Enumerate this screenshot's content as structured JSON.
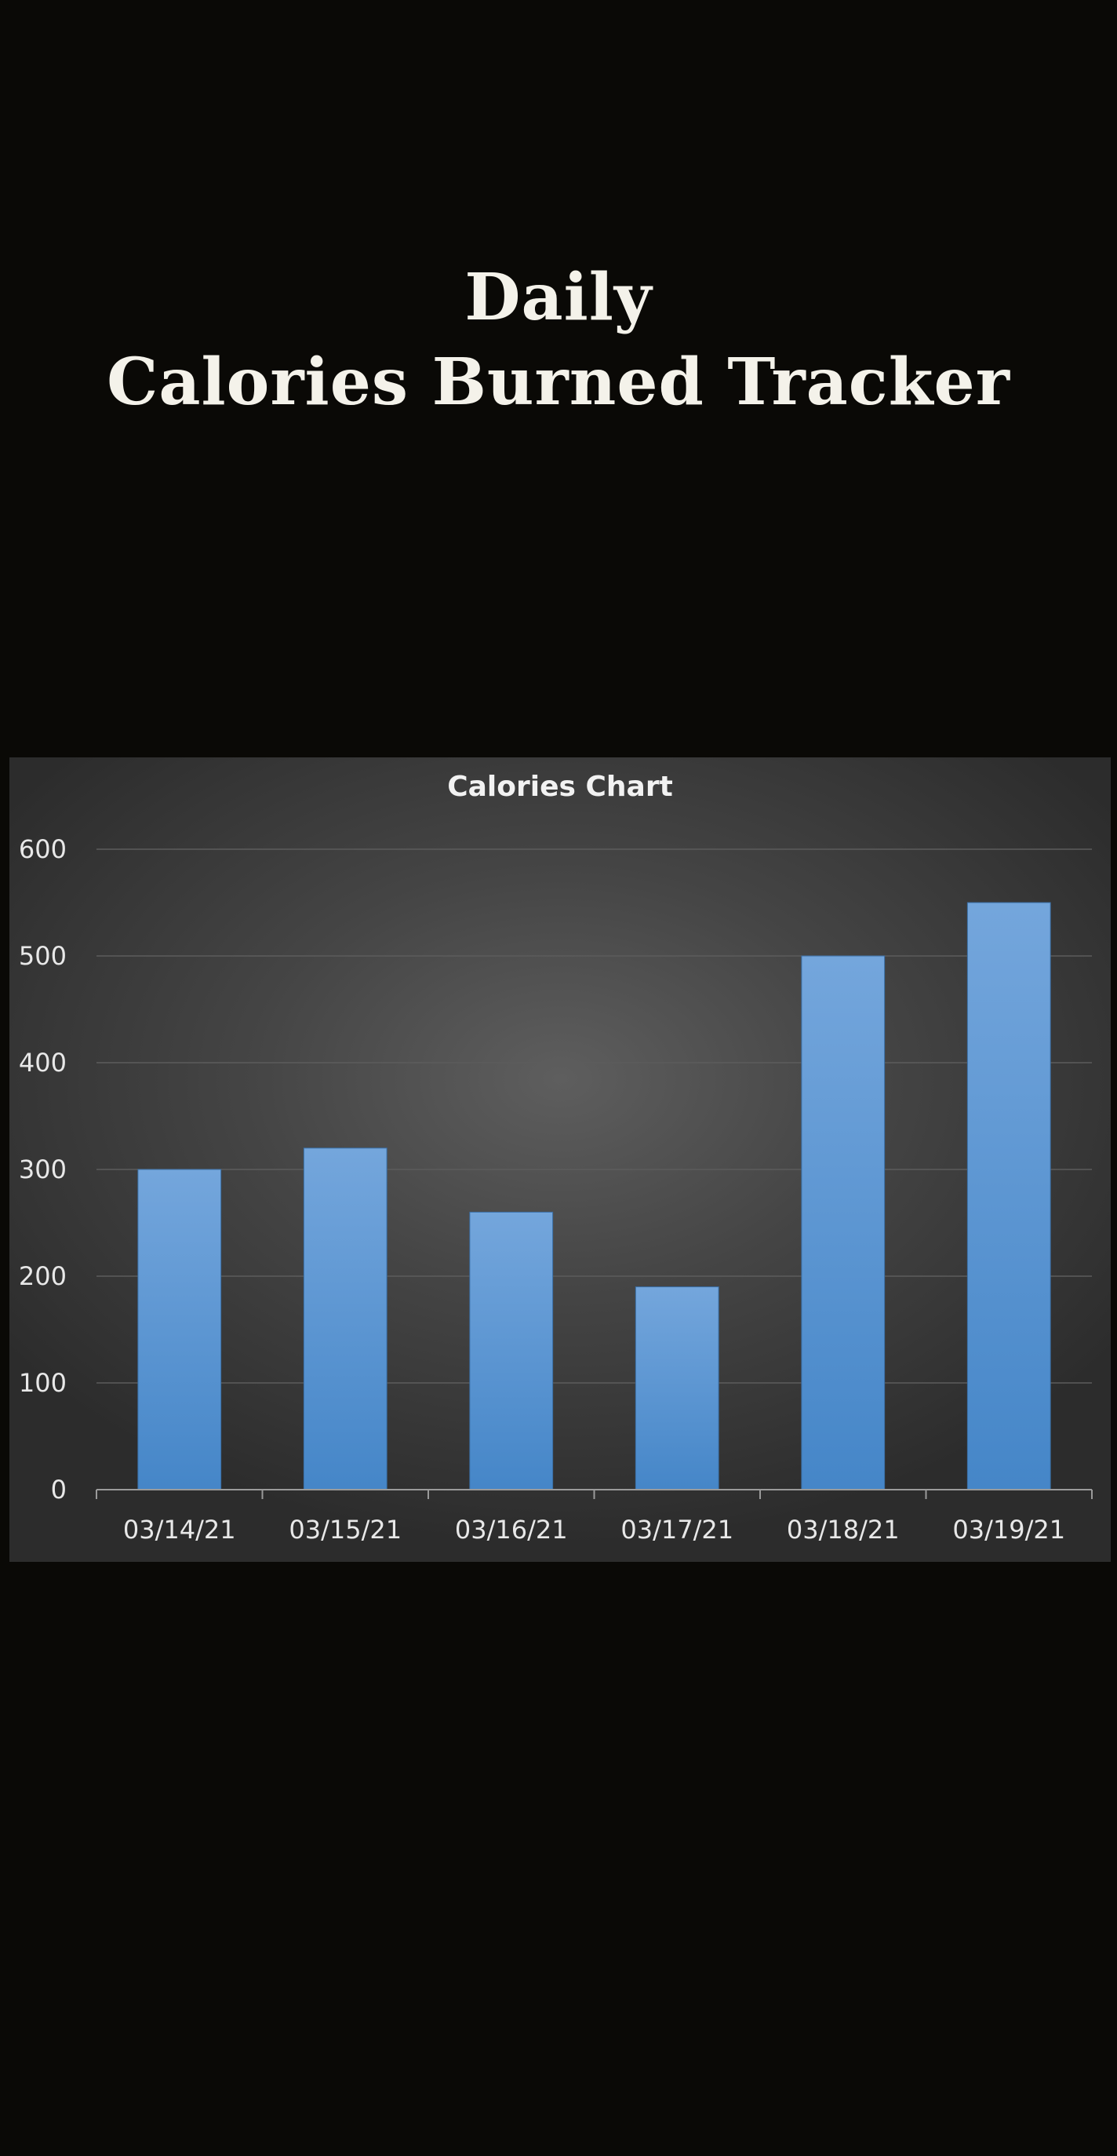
{
  "header": {
    "title_line1": "Daily",
    "title_line2": "Calories Burned Tracker"
  },
  "colors": {
    "background": "#0a0906",
    "title_text": "#f4f2ea",
    "bar_fill_top": "#74a6dc",
    "bar_fill_bottom": "#4586c8",
    "gridline": "#5c5c5c",
    "axis": "#9a9a9a"
  },
  "chart_data": {
    "type": "bar",
    "title": "Calories Chart",
    "xlabel": "",
    "ylabel": "",
    "categories": [
      "03/14/21",
      "03/15/21",
      "03/16/21",
      "03/17/21",
      "03/18/21",
      "03/19/21"
    ],
    "values": [
      300,
      320,
      260,
      190,
      500,
      550
    ],
    "ylim": [
      0,
      600
    ],
    "yticks": [
      0,
      100,
      200,
      300,
      400,
      500,
      600
    ],
    "grid": true,
    "legend": "none"
  }
}
